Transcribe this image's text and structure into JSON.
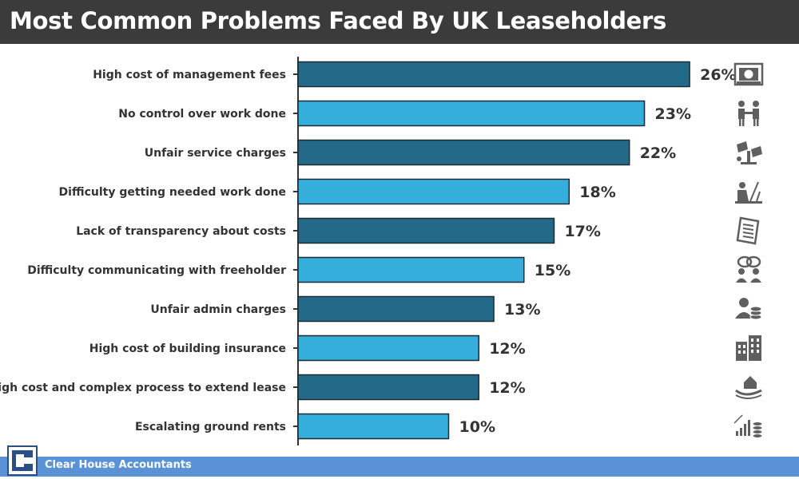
{
  "header": {
    "title": "Most Common Problems Faced By UK Leaseholders"
  },
  "footer": {
    "company": "Clear House Accountants"
  },
  "colors": {
    "dark_bar": "#236a88",
    "light_bar": "#35aedc",
    "header_bg": "#3b3b3b",
    "footer_band": "#5b92d5",
    "icon": "#5f5f5f"
  },
  "chart_data": {
    "type": "bar",
    "orientation": "horizontal",
    "categories": [
      "High cost of management fees",
      "No control over work done",
      "Unfair service charges",
      "Difficulty getting needed work done",
      "Lack of transparency about costs",
      "Difficulty communicating with freeholder",
      "Unfair admin charges",
      "High cost of building insurance",
      "High cost and complex process to extend lease",
      "Escalating ground rents"
    ],
    "values": [
      26,
      23,
      22,
      18,
      17,
      15,
      13,
      12,
      12,
      10
    ],
    "value_labels": [
      "26%",
      "23%",
      "22%",
      "18%",
      "17%",
      "15%",
      "13%",
      "12%",
      "12%",
      "10%"
    ],
    "unit": "%",
    "icons": [
      "money-icon",
      "handshake-icon",
      "scales-icon",
      "worker-icon",
      "document-icon",
      "chat-icon",
      "person-coins-icon",
      "building-icon",
      "hand-house-icon",
      "growth-coins-icon"
    ],
    "grid": false,
    "legend": "none"
  }
}
